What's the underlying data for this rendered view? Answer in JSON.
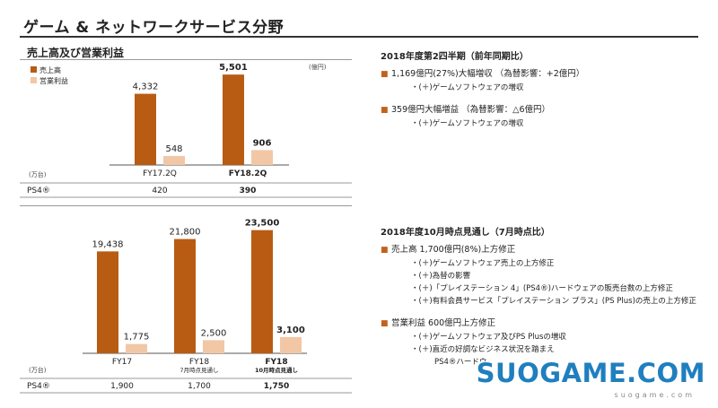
{
  "page": {
    "title": "ゲーム & ネットワークサービス分野"
  },
  "section": {
    "title": "売上高及び営業利益"
  },
  "colors": {
    "sales": "#b85c14",
    "op_income": "#f2c7a6"
  },
  "legend": {
    "sales": "売上高",
    "op_income": "営業利益"
  },
  "chart_data": [
    {
      "type": "bar",
      "unit": "(億円)",
      "categories": [
        "FY17.2Q",
        "FY18.2Q"
      ],
      "category_sub": [
        "",
        ""
      ],
      "series": [
        {
          "name": "売上高",
          "values": [
            4332,
            5501
          ]
        },
        {
          "name": "営業利益",
          "values": [
            548,
            906
          ]
        }
      ],
      "value_labels": {
        "売上高": [
          "4,332",
          "5,501"
        ],
        "営業利益": [
          "548",
          "906"
        ]
      },
      "bold_index": 1,
      "ylim": [
        0,
        6000
      ],
      "units_row": {
        "unit": "(万台)",
        "label": "PS4®",
        "values": [
          "420",
          "390"
        ]
      }
    },
    {
      "type": "bar",
      "categories": [
        "FY17",
        "FY18",
        "FY18"
      ],
      "category_sub": [
        "",
        "7月時点見通し",
        "10月時点見通し"
      ],
      "series": [
        {
          "name": "売上高",
          "values": [
            19438,
            21800,
            23500
          ]
        },
        {
          "name": "営業利益",
          "values": [
            1775,
            2500,
            3100
          ]
        }
      ],
      "value_labels": {
        "売上高": [
          "19,438",
          "21,800",
          "23,500"
        ],
        "営業利益": [
          "1,775",
          "2,500",
          "3,100"
        ]
      },
      "bold_index": 2,
      "ylim": [
        0,
        26000
      ],
      "units_row": {
        "unit": "(万台)",
        "label": "PS4®",
        "values": [
          "1,900",
          "1,700",
          "1,750"
        ]
      }
    }
  ],
  "block1": {
    "heading": "2018年度第2四半期（前年同期比）",
    "item1": "1,169億円(27%)大幅増収 （為替影響：+2億円）",
    "item1_sub1": "・(＋)ゲームソフトウェアの増収",
    "item2": "359億円大幅増益 （為替影響：△6億円）",
    "item2_sub1": "・(＋)ゲームソフトウェアの増収"
  },
  "block2": {
    "heading": "2018年度10月時点見通し（7月時点比）",
    "item1": "売上高 1,700億円(8%)上方修正",
    "item1_sub1": "・(＋)ゲームソフトウェア売上の上方修正",
    "item1_sub2": "・(＋)為替の影響",
    "item1_sub3": "・(＋)「プレイステーション 4」(PS4®)ハードウェアの販売台数の上方修正",
    "item1_sub4": "・(＋)有料会員サービス「プレイステーション プラス」(PS Plus)の売上の上方修正",
    "item2": "営業利益 600億円上方修正",
    "item2_sub1": "・(＋)ゲームソフトウェア及びPS Plusの増収",
    "item2_sub2": "・(＋)直近の好調なビジネス状況を踏まえ",
    "item2_sub3": "PS4®ハードウ"
  },
  "watermark": {
    "text": "SUOGAME.COM",
    "sub": "suogame.com"
  }
}
